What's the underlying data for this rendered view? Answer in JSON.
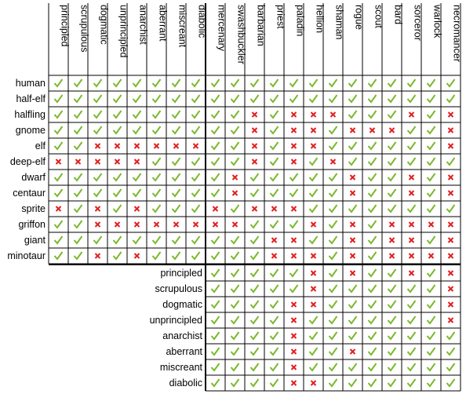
{
  "columns": [
    "principled",
    "scrupulous",
    "dogmatic",
    "unprincipled",
    "anarchist",
    "aberrant",
    "miscreant",
    "diabolic",
    "mercenary",
    "swashbuckler",
    "barbarian",
    "priest",
    "paladin",
    "hellion",
    "shaman",
    "rogue",
    "scout",
    "bard",
    "sorceror",
    "warlock",
    "necromancer"
  ],
  "race_rows": [
    {
      "label": "human",
      "cells": [
        true,
        true,
        true,
        true,
        true,
        true,
        true,
        true,
        true,
        true,
        true,
        true,
        true,
        true,
        true,
        true,
        true,
        true,
        true,
        true,
        true
      ]
    },
    {
      "label": "half-elf",
      "cells": [
        true,
        true,
        true,
        true,
        true,
        true,
        true,
        true,
        true,
        true,
        true,
        true,
        true,
        true,
        true,
        true,
        true,
        true,
        true,
        true,
        true
      ]
    },
    {
      "label": "halfling",
      "cells": [
        true,
        true,
        true,
        true,
        true,
        true,
        true,
        true,
        true,
        true,
        false,
        true,
        false,
        false,
        false,
        true,
        true,
        true,
        false,
        true,
        false
      ]
    },
    {
      "label": "gnome",
      "cells": [
        true,
        true,
        true,
        true,
        true,
        true,
        true,
        true,
        true,
        true,
        false,
        true,
        false,
        false,
        true,
        false,
        false,
        false,
        true,
        true,
        false
      ]
    },
    {
      "label": "elf",
      "cells": [
        true,
        true,
        false,
        false,
        false,
        false,
        false,
        false,
        true,
        true,
        false,
        true,
        false,
        false,
        true,
        true,
        true,
        true,
        true,
        true,
        false
      ]
    },
    {
      "label": "deep-elf",
      "cells": [
        false,
        false,
        false,
        false,
        false,
        true,
        true,
        true,
        true,
        true,
        false,
        true,
        false,
        true,
        false,
        true,
        true,
        true,
        true,
        true,
        true
      ]
    },
    {
      "label": "dwarf",
      "cells": [
        true,
        true,
        true,
        true,
        true,
        true,
        true,
        true,
        true,
        false,
        true,
        true,
        true,
        true,
        true,
        false,
        true,
        true,
        false,
        true,
        false
      ]
    },
    {
      "label": "centaur",
      "cells": [
        true,
        true,
        true,
        true,
        true,
        true,
        true,
        true,
        true,
        false,
        true,
        true,
        true,
        true,
        true,
        false,
        true,
        true,
        false,
        true,
        false
      ]
    },
    {
      "label": "sprite",
      "cells": [
        false,
        true,
        false,
        true,
        false,
        true,
        true,
        true,
        false,
        true,
        false,
        false,
        false,
        true,
        true,
        true,
        true,
        true,
        true,
        true,
        true
      ]
    },
    {
      "label": "griffon",
      "cells": [
        true,
        true,
        false,
        false,
        false,
        false,
        false,
        false,
        false,
        false,
        true,
        true,
        true,
        false,
        true,
        false,
        true,
        false,
        false,
        false,
        false
      ]
    },
    {
      "label": "giant",
      "cells": [
        true,
        true,
        true,
        true,
        true,
        true,
        true,
        true,
        true,
        true,
        true,
        false,
        false,
        true,
        true,
        false,
        true,
        false,
        false,
        true,
        false
      ]
    },
    {
      "label": "minotaur",
      "cells": [
        true,
        true,
        false,
        true,
        false,
        true,
        true,
        true,
        true,
        true,
        true,
        false,
        false,
        false,
        true,
        false,
        true,
        false,
        false,
        false,
        false
      ]
    }
  ],
  "alignment_rows": [
    {
      "label": "principled",
      "cells": [
        true,
        true,
        true,
        true,
        true,
        false,
        true,
        false,
        true,
        true,
        false,
        true,
        false
      ]
    },
    {
      "label": "scrupulous",
      "cells": [
        true,
        true,
        true,
        true,
        true,
        false,
        true,
        true,
        true,
        true,
        true,
        true,
        false
      ]
    },
    {
      "label": "dogmatic",
      "cells": [
        true,
        true,
        true,
        true,
        false,
        false,
        true,
        true,
        true,
        true,
        true,
        true,
        false
      ]
    },
    {
      "label": "unprincipled",
      "cells": [
        true,
        true,
        true,
        true,
        false,
        true,
        true,
        true,
        true,
        true,
        true,
        true,
        false
      ]
    },
    {
      "label": "anarchist",
      "cells": [
        true,
        true,
        true,
        true,
        false,
        true,
        true,
        true,
        true,
        true,
        true,
        true,
        true
      ]
    },
    {
      "label": "aberrant",
      "cells": [
        true,
        true,
        true,
        true,
        false,
        true,
        true,
        false,
        true,
        true,
        true,
        true,
        true
      ]
    },
    {
      "label": "miscreant",
      "cells": [
        true,
        true,
        true,
        true,
        false,
        true,
        true,
        true,
        true,
        true,
        true,
        true,
        true
      ]
    },
    {
      "label": "diabolic",
      "cells": [
        true,
        true,
        true,
        true,
        false,
        false,
        true,
        true,
        true,
        true,
        true,
        true,
        true
      ]
    }
  ]
}
